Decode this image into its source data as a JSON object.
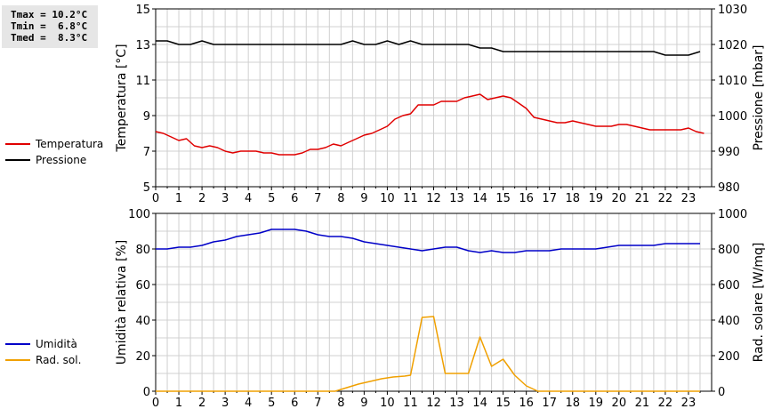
{
  "stats": {
    "tmax": "Tmax = 10.2°C",
    "tmin": "Tmin =  6.8°C",
    "tmed": "Tmed =  8.3°C"
  },
  "colors": {
    "temperature": "#e00000",
    "pressure": "#000000",
    "humidity": "#0000c8",
    "radiation": "#f0a000",
    "grid": "#d0d0d0"
  },
  "chart_data": [
    {
      "type": "line",
      "x_ticks": [
        0,
        1,
        2,
        3,
        4,
        5,
        6,
        7,
        8,
        9,
        10,
        11,
        12,
        13,
        14,
        15,
        16,
        17,
        18,
        19,
        20,
        21,
        22,
        23
      ],
      "xlim": [
        0,
        24
      ],
      "ylabel_left": "Temperatura [°C]",
      "ylim_left": [
        5,
        15
      ],
      "yticks_left": [
        5,
        7,
        9,
        11,
        13,
        15
      ],
      "ylabel_right": "Pressione [mbar]",
      "ylim_right": [
        980,
        1030
      ],
      "yticks_right": [
        980,
        990,
        1000,
        1010,
        1020,
        1030
      ],
      "grid": true,
      "legend_position": "left",
      "series": [
        {
          "name": "Temperatura",
          "axis": "left",
          "color": "#e00000",
          "x": [
            0,
            0.33,
            0.67,
            1,
            1.33,
            1.67,
            2,
            2.33,
            2.67,
            3,
            3.33,
            3.67,
            4,
            4.33,
            4.67,
            5,
            5.33,
            5.67,
            6,
            6.33,
            6.67,
            7,
            7.33,
            7.67,
            8,
            8.33,
            8.67,
            9,
            9.33,
            9.67,
            10,
            10.33,
            10.67,
            11,
            11.33,
            11.67,
            12,
            12.33,
            12.67,
            13,
            13.33,
            13.67,
            14,
            14.33,
            14.67,
            15,
            15.33,
            15.67,
            16,
            16.33,
            16.67,
            17,
            17.33,
            17.67,
            18,
            18.33,
            18.67,
            19,
            19.33,
            19.67,
            20,
            20.33,
            20.67,
            21,
            21.33,
            21.67,
            22,
            22.33,
            22.67,
            23,
            23.33,
            23.67
          ],
          "values": [
            8.1,
            8.0,
            7.8,
            7.6,
            7.7,
            7.3,
            7.2,
            7.3,
            7.2,
            7.0,
            6.9,
            7.0,
            7.0,
            7.0,
            6.9,
            6.9,
            6.8,
            6.8,
            6.8,
            6.9,
            7.1,
            7.1,
            7.2,
            7.4,
            7.3,
            7.5,
            7.7,
            7.9,
            8.0,
            8.2,
            8.4,
            8.8,
            9.0,
            9.1,
            9.6,
            9.6,
            9.6,
            9.8,
            9.8,
            9.8,
            10.0,
            10.1,
            10.2,
            9.9,
            10.0,
            10.1,
            10.0,
            9.7,
            9.4,
            8.9,
            8.8,
            8.7,
            8.6,
            8.6,
            8.7,
            8.6,
            8.5,
            8.4,
            8.4,
            8.4,
            8.5,
            8.5,
            8.4,
            8.3,
            8.2,
            8.2,
            8.2,
            8.2,
            8.2,
            8.3,
            8.1,
            8.0
          ]
        },
        {
          "name": "Pressione",
          "axis": "right",
          "color": "#000000",
          "x": [
            0,
            0.5,
            1,
            1.5,
            2,
            2.5,
            3,
            3.5,
            4,
            4.5,
            5,
            5.5,
            6,
            6.5,
            7,
            7.5,
            8,
            8.5,
            9,
            9.5,
            10,
            10.5,
            11,
            11.5,
            12,
            12.5,
            13,
            13.5,
            14,
            14.5,
            15,
            15.5,
            16,
            16.5,
            17,
            17.5,
            18,
            18.5,
            19,
            19.5,
            20,
            20.5,
            21,
            21.5,
            22,
            22.5,
            23,
            23.5
          ],
          "values": [
            1021,
            1021,
            1020,
            1020,
            1021,
            1020,
            1020,
            1020,
            1020,
            1020,
            1020,
            1020,
            1020,
            1020,
            1020,
            1020,
            1020,
            1021,
            1020,
            1020,
            1021,
            1020,
            1021,
            1020,
            1020,
            1020,
            1020,
            1020,
            1019,
            1019,
            1018,
            1018,
            1018,
            1018,
            1018,
            1018,
            1018,
            1018,
            1018,
            1018,
            1018,
            1018,
            1018,
            1018,
            1017,
            1017,
            1017,
            1018
          ]
        }
      ]
    },
    {
      "type": "line",
      "x_ticks": [
        0,
        1,
        2,
        3,
        4,
        5,
        6,
        7,
        8,
        9,
        10,
        11,
        12,
        13,
        14,
        15,
        16,
        17,
        18,
        19,
        20,
        21,
        22,
        23
      ],
      "xlim": [
        0,
        24
      ],
      "ylabel_left": "Umidità relativa [%]",
      "ylim_left": [
        0,
        100
      ],
      "yticks_left": [
        0,
        20,
        40,
        60,
        80,
        100
      ],
      "ylabel_right": "Rad. solare [W/mq]",
      "ylim_right": [
        0,
        1000
      ],
      "yticks_right": [
        0,
        200,
        400,
        600,
        800,
        1000
      ],
      "grid": true,
      "legend_position": "left",
      "series": [
        {
          "name": "Umidità",
          "axis": "left",
          "color": "#0000c8",
          "x": [
            0,
            0.5,
            1,
            1.5,
            2,
            2.5,
            3,
            3.5,
            4,
            4.5,
            5,
            5.5,
            6,
            6.5,
            7,
            7.5,
            8,
            8.5,
            9,
            9.5,
            10,
            10.5,
            11,
            11.5,
            12,
            12.5,
            13,
            13.5,
            14,
            14.5,
            15,
            15.5,
            16,
            16.5,
            17,
            17.5,
            18,
            18.5,
            19,
            19.5,
            20,
            20.5,
            21,
            21.5,
            22,
            22.5,
            23,
            23.5
          ],
          "values": [
            80,
            80,
            81,
            81,
            82,
            84,
            85,
            87,
            88,
            89,
            91,
            91,
            91,
            90,
            88,
            87,
            87,
            86,
            84,
            83,
            82,
            81,
            80,
            79,
            80,
            81,
            81,
            79,
            78,
            79,
            78,
            78,
            79,
            79,
            79,
            80,
            80,
            80,
            80,
            81,
            82,
            82,
            82,
            82,
            83,
            83,
            83,
            83
          ]
        },
        {
          "name": "Rad. sol.",
          "axis": "right",
          "color": "#f0a000",
          "x": [
            0,
            1,
            2,
            3,
            4,
            5,
            6,
            7,
            7.75,
            8.25,
            8.75,
            9.25,
            9.75,
            10.25,
            10.75,
            11.0,
            11.5,
            12.0,
            12.5,
            13.0,
            13.5,
            14.0,
            14.5,
            15.0,
            15.5,
            16.0,
            16.5,
            17,
            18,
            19,
            20,
            21,
            22,
            23,
            23.5
          ],
          "values": [
            0,
            0,
            0,
            0,
            0,
            0,
            0,
            0,
            0,
            20,
            40,
            55,
            70,
            80,
            85,
            90,
            415,
            420,
            100,
            100,
            100,
            305,
            140,
            180,
            90,
            30,
            0,
            0,
            0,
            0,
            0,
            0,
            0,
            0,
            0
          ]
        }
      ]
    }
  ]
}
